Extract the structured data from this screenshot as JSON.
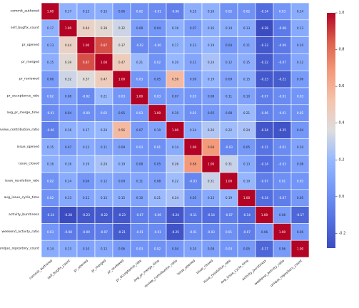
{
  "chart_data": {
    "type": "heatmap",
    "title": "",
    "xlabel": "",
    "ylabel": "",
    "labels": [
      "commit_authored",
      "self_bugfix_count",
      "pr_opened",
      "pr_merged",
      "pr_reviewed",
      "pr_acceptance_rate",
      "avg_pr_merge_time",
      "review_contribution_ratio",
      "issue_opened",
      "issue_closed",
      "issue_resolution_rate",
      "avg_issue_cycle_time",
      "activity_burstiness",
      "weekend_activity_ratio",
      "unique_repository_count"
    ],
    "matrix": [
      [
        1.0,
        0.17,
        0.13,
        0.15,
        0.06,
        0.02,
        -0.01,
        -0.06,
        0.15,
        0.16,
        0.02,
        0.02,
        -0.14,
        0.03,
        0.14
      ],
      [
        0.17,
        1.0,
        0.44,
        0.39,
        0.32,
        0.08,
        0.04,
        0.16,
        0.07,
        0.16,
        0.14,
        0.13,
        -0.28,
        -0.08,
        0.13
      ],
      [
        0.13,
        0.44,
        1.0,
        0.87,
        0.37,
        -0.02,
        -0.0,
        0.17,
        0.13,
        0.19,
        0.04,
        0.11,
        -0.23,
        -0.09,
        0.1
      ],
      [
        0.15,
        0.39,
        0.87,
        1.0,
        0.47,
        0.21,
        0.02,
        0.2,
        0.11,
        0.24,
        0.12,
        0.15,
        -0.22,
        -0.07,
        0.12
      ],
      [
        0.06,
        0.32,
        0.37,
        0.47,
        1.0,
        0.03,
        0.05,
        0.56,
        0.09,
        0.19,
        0.09,
        0.15,
        -0.23,
        -0.21,
        0.06
      ],
      [
        0.02,
        0.08,
        -0.02,
        0.21,
        0.03,
        1.0,
        0.03,
        0.07,
        0.03,
        0.08,
        0.11,
        0.1,
        -0.07,
        -0.01,
        0.03
      ],
      [
        -0.01,
        0.04,
        -0.0,
        0.02,
        0.05,
        0.03,
        1.0,
        0.1,
        0.01,
        0.05,
        0.08,
        0.21,
        -0.06,
        -0.01,
        0.02
      ],
      [
        -0.06,
        0.16,
        0.17,
        0.2,
        0.56,
        0.07,
        0.1,
        1.0,
        0.14,
        0.26,
        0.22,
        0.24,
        -0.24,
        -0.25,
        0.04
      ],
      [
        0.15,
        0.07,
        0.13,
        0.11,
        0.09,
        0.03,
        0.01,
        0.14,
        1.0,
        0.68,
        -0.03,
        0.05,
        -0.11,
        -0.01,
        0.1
      ],
      [
        0.16,
        0.16,
        0.19,
        0.24,
        0.19,
        0.08,
        0.05,
        0.26,
        0.68,
        1.0,
        0.31,
        0.13,
        -0.14,
        -0.03,
        0.08
      ],
      [
        0.02,
        0.14,
        0.04,
        0.12,
        0.09,
        0.11,
        0.08,
        0.22,
        -0.03,
        0.31,
        1.0,
        0.19,
        -0.07,
        0.01,
        0.03
      ],
      [
        0.02,
        0.13,
        0.11,
        0.15,
        0.15,
        0.1,
        0.21,
        0.24,
        0.05,
        0.13,
        0.19,
        1.0,
        -0.14,
        -0.07,
        0.05
      ],
      [
        -0.14,
        -0.28,
        -0.23,
        -0.22,
        -0.23,
        -0.07,
        -0.06,
        -0.24,
        -0.11,
        -0.14,
        -0.07,
        -0.14,
        1.0,
        0.06,
        -0.17
      ],
      [
        0.03,
        -0.08,
        -0.09,
        -0.07,
        -0.21,
        -0.01,
        -0.01,
        -0.25,
        -0.01,
        -0.03,
        0.01,
        -0.07,
        0.06,
        1.0,
        0.06
      ],
      [
        0.14,
        0.13,
        0.1,
        0.12,
        0.06,
        0.03,
        0.02,
        0.04,
        0.1,
        0.08,
        0.03,
        0.05,
        -0.17,
        0.06,
        1.0
      ]
    ],
    "colorbar": {
      "colormap": "coolwarm",
      "vmin": -0.28,
      "vmax": 1.0,
      "ticks": [
        1.0,
        0.8,
        0.6,
        0.4,
        0.2,
        0.0,
        -0.2
      ],
      "tick_labels": [
        "1.0",
        "0.8",
        "0.6",
        "0.4",
        "0.2",
        "0.0",
        "-0.2"
      ]
    },
    "cell_borders": "white",
    "annotations": true
  }
}
